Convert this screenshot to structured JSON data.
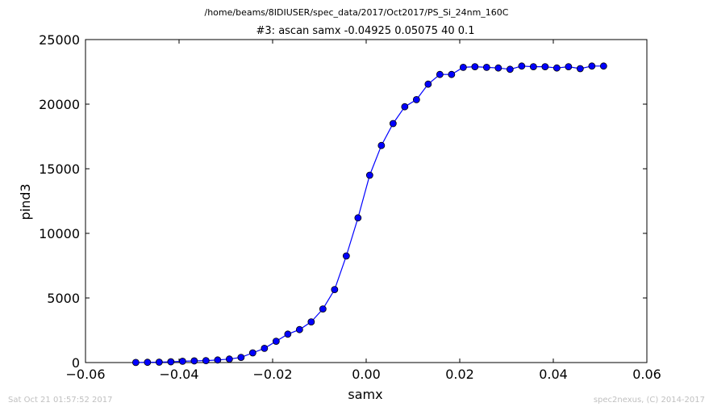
{
  "header": {
    "path": "/home/beams/8IDIUSER/spec_data/2017/Oct2017/PS_Si_24nm_160C"
  },
  "footer": {
    "left": "Sat Oct 21 01:57:52 2017",
    "right": "spec2nexus, (C) 2014-2017"
  },
  "chart_data": {
    "type": "line",
    "title": "#3: ascan  samx -0.04925 0.05075  40 0.1",
    "xlabel": "samx",
    "ylabel": "pind3",
    "xlim": [
      -0.06,
      0.06
    ],
    "ylim": [
      0,
      25000
    ],
    "xticks": [
      -0.06,
      -0.04,
      -0.02,
      0.0,
      0.02,
      0.04,
      0.06
    ],
    "xtick_labels": [
      "−0.06",
      "−0.04",
      "−0.02",
      "0.00",
      "0.02",
      "0.04",
      "0.06"
    ],
    "yticks": [
      0,
      5000,
      10000,
      15000,
      20000,
      25000
    ],
    "ytick_labels": [
      "0",
      "5000",
      "10000",
      "15000",
      "20000",
      "25000"
    ],
    "grid": false,
    "series": [
      {
        "color": "#0000ff",
        "marker": "circle",
        "x": [
          -0.04925,
          -0.04675,
          -0.04425,
          -0.04175,
          -0.03925,
          -0.03675,
          -0.03425,
          -0.03175,
          -0.02925,
          -0.02675,
          -0.02425,
          -0.02175,
          -0.01925,
          -0.01675,
          -0.01425,
          -0.01175,
          -0.00925,
          -0.00675,
          -0.00425,
          -0.00175,
          0.00075,
          0.00325,
          0.00575,
          0.00825,
          0.01075,
          0.01325,
          0.01575,
          0.01825,
          0.02075,
          0.02325,
          0.02575,
          0.02825,
          0.03075,
          0.03325,
          0.03575,
          0.03825,
          0.04075,
          0.04325,
          0.04575,
          0.04825,
          0.05075
        ],
        "y": [
          10,
          20,
          30,
          60,
          100,
          130,
          150,
          200,
          270,
          400,
          750,
          1100,
          1650,
          2200,
          2550,
          3150,
          4150,
          5650,
          8250,
          11200,
          14500,
          16800,
          18500,
          19800,
          20350,
          21550,
          22300,
          22300,
          22850,
          22900,
          22850,
          22800,
          22700,
          22950,
          22900,
          22900,
          22800,
          22900,
          22750,
          22950,
          22950
        ]
      }
    ]
  }
}
